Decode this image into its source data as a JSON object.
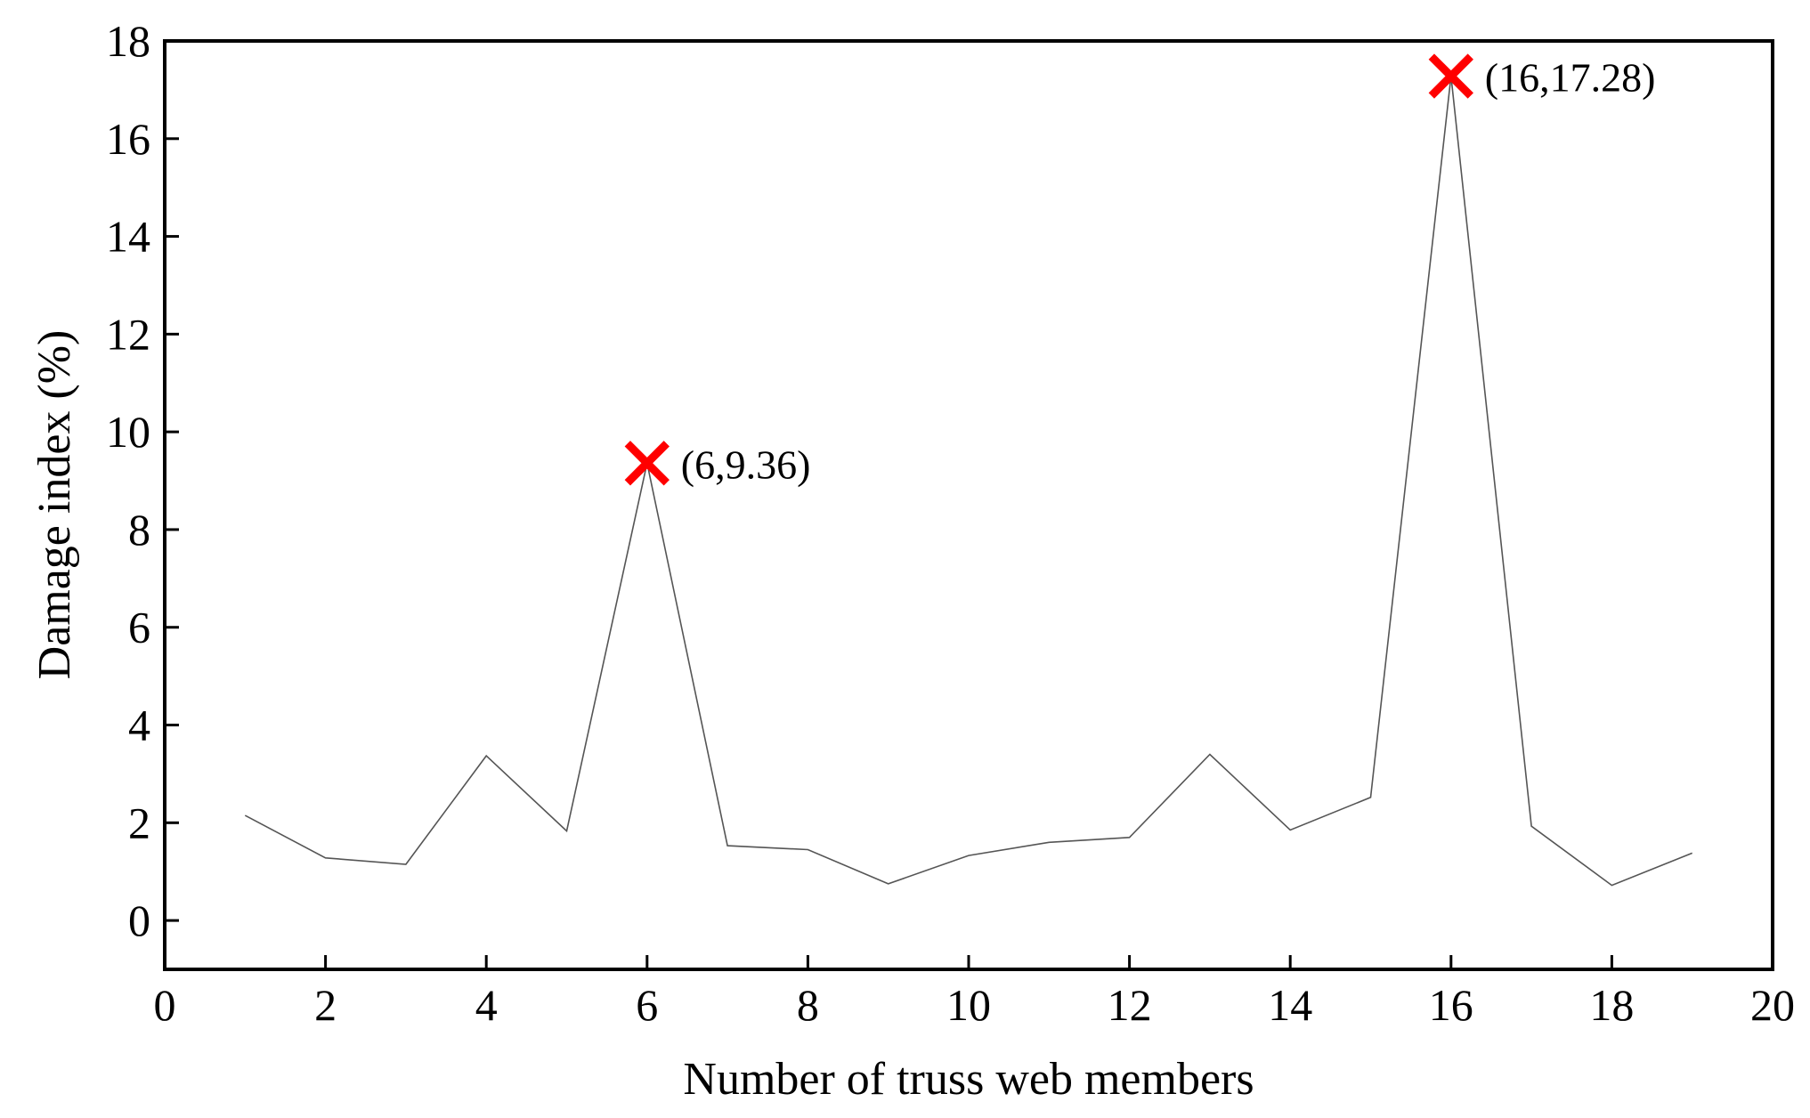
{
  "chart_data": {
    "type": "line",
    "title": "",
    "xlabel": "Number of truss web members",
    "ylabel": "Damage index (%)",
    "xlim": [
      0,
      20
    ],
    "ylim": [
      -1,
      18
    ],
    "x_ticks": [
      0,
      2,
      4,
      6,
      8,
      10,
      12,
      14,
      16,
      18,
      20
    ],
    "y_ticks": [
      0,
      2,
      4,
      6,
      8,
      10,
      12,
      14,
      16,
      18
    ],
    "grid": false,
    "legend": "none",
    "series": [
      {
        "color": "#555555",
        "x": [
          1,
          2,
          3,
          4,
          5,
          6,
          7,
          8,
          9,
          10,
          11,
          12,
          13,
          14,
          15,
          16,
          17,
          18,
          19
        ],
        "values": [
          2.15,
          1.28,
          1.15,
          3.37,
          1.83,
          9.36,
          1.53,
          1.45,
          0.75,
          1.33,
          1.6,
          1.7,
          3.4,
          1.85,
          2.52,
          17.28,
          1.93,
          0.72,
          1.38
        ]
      }
    ],
    "annotations": [
      {
        "x": 6,
        "y": 9.36,
        "label": "(6,9.36)",
        "marker": "x",
        "color": "#ff0000"
      },
      {
        "x": 16,
        "y": 17.28,
        "label": "(16,17.28)",
        "marker": "x",
        "color": "#ff0000"
      }
    ]
  }
}
